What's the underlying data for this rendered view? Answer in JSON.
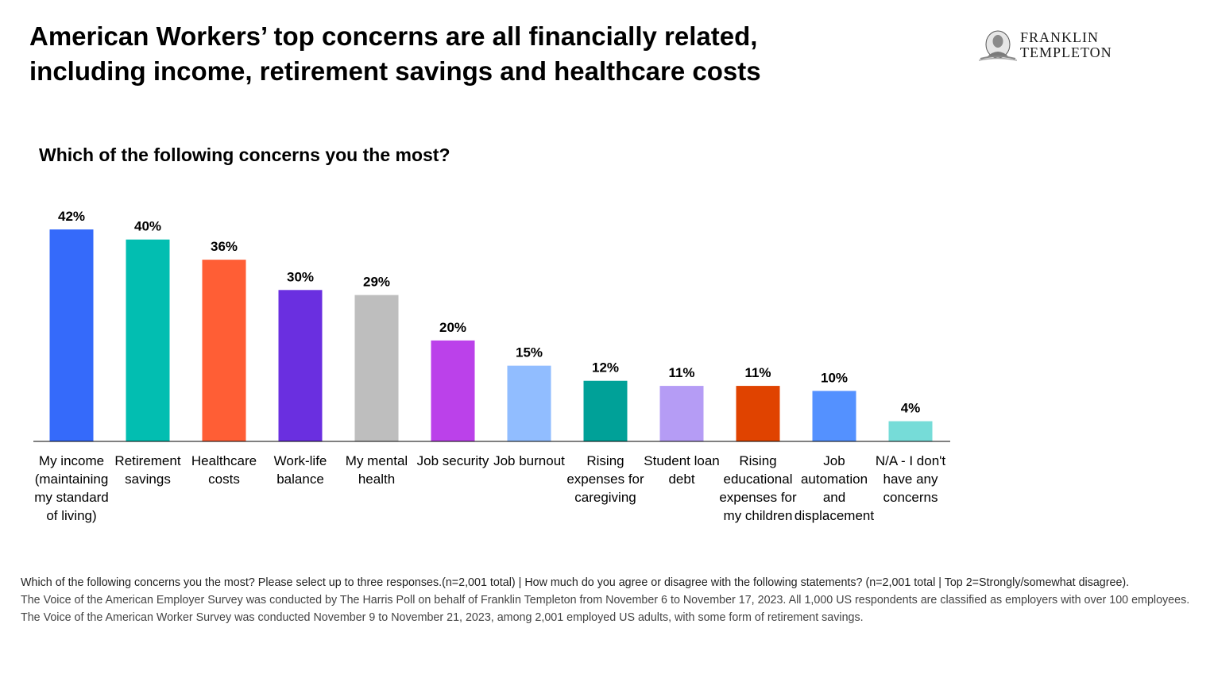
{
  "header": {
    "title_line1": "American Workers’ top concerns are all financially related,",
    "title_line2": "including income, retirement savings and healthcare costs"
  },
  "logo": {
    "line1": "FRANKLIN",
    "line2": "TEMPLETON",
    "icon": "portrait-seal-icon"
  },
  "chart_data": {
    "type": "bar",
    "title": "Which of the following concerns you the most?",
    "categories": [
      "My income (maintaining my standard of living)",
      "Retirement savings",
      "Healthcare costs",
      "Work-life balance",
      "My mental health",
      "Job security",
      "Job burnout",
      "Rising expenses for caregiving",
      "Student loan debt",
      "Rising educational expenses for my children",
      "Job automation and displacement",
      "N/A - I don't have any concerns"
    ],
    "category_lines": [
      [
        "My income",
        "(maintaining",
        "my standard",
        "of living)"
      ],
      [
        "Retirement",
        "savings"
      ],
      [
        "Healthcare",
        "costs"
      ],
      [
        "Work-life",
        "balance"
      ],
      [
        "My mental",
        "health"
      ],
      [
        "Job security"
      ],
      [
        "Job burnout"
      ],
      [
        "Rising",
        "expenses for",
        "caregiving"
      ],
      [
        "Student loan",
        "debt"
      ],
      [
        "Rising",
        "educational",
        "expenses for",
        "my children"
      ],
      [
        "Job",
        "automation",
        "and",
        "displacement"
      ],
      [
        "N/A - I don't",
        "have any",
        "concerns"
      ]
    ],
    "values": [
      42,
      40,
      36,
      30,
      29,
      20,
      15,
      12,
      11,
      11,
      10,
      4
    ],
    "value_labels": [
      "42%",
      "40%",
      "36%",
      "30%",
      "29%",
      "20%",
      "15%",
      "12%",
      "11%",
      "11%",
      "10%",
      "4%"
    ],
    "colors": [
      "#356AFA",
      "#02BEB1",
      "#FF5E35",
      "#6A2FE0",
      "#BEBEBE",
      "#BB41EA",
      "#91BDFF",
      "#00A198",
      "#B59CF5",
      "#E04300",
      "#5491FF",
      "#76DCD8"
    ],
    "xlabel": "",
    "ylabel": "",
    "ylim": [
      0,
      42
    ],
    "grid": false,
    "legend": "none"
  },
  "footnote": {
    "line1": "Which of the following concerns you the most? Please select up to three responses.(n=2,001 total) | How much do you agree or disagree with the following statements? (n=2,001 total | Top 2=Strongly/somewhat disagree).",
    "line2": "The Voice of the American Employer Survey was conducted by The Harris Poll on behalf of Franklin Templeton from November 6 to November 17, 2023. All 1,000 US respondents are classified as employers with over 100 employees. The Voice of the American Worker Survey was conducted November 9 to November 21, 2023, among 2,001 employed US adults, with some form of retirement savings."
  }
}
